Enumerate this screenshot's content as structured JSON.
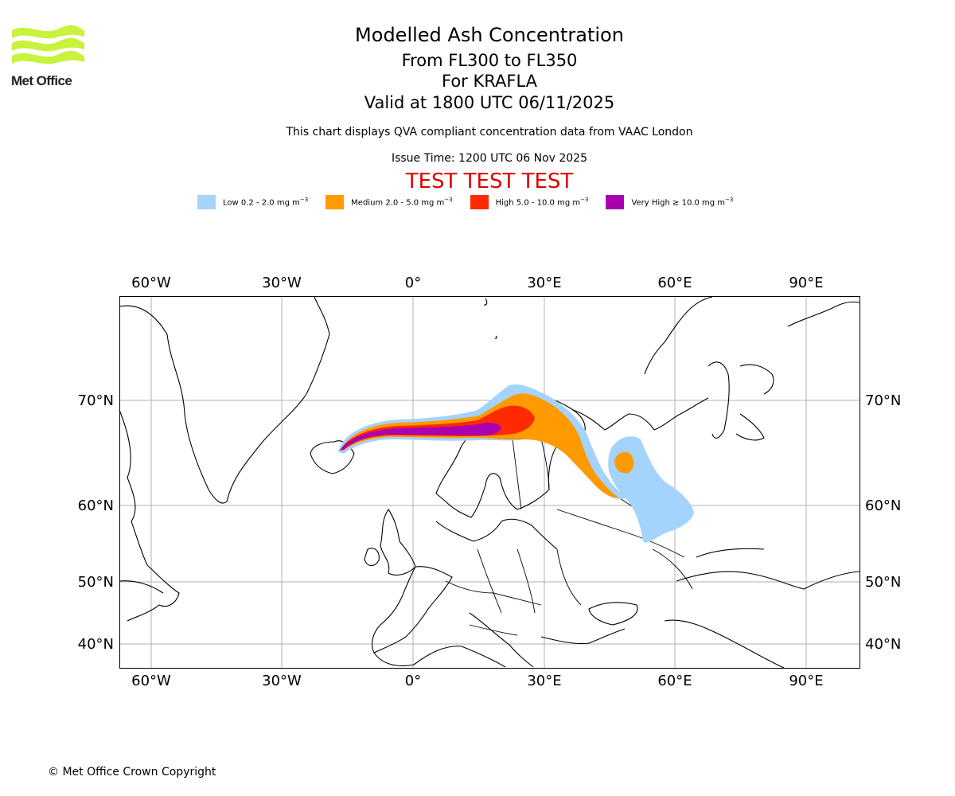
{
  "header": {
    "title": "Modelled Ash Concentration",
    "level_range": "From FL300 to FL350",
    "volcano": "For KRAFLA",
    "valid_time": "Valid at 1800 UTC 06/11/2025",
    "qva_note": "This chart displays QVA compliant concentration data from VAAC London",
    "issue_time": "Issue Time: 1200 UTC 06 Nov 2025",
    "test_banner": "TEST TEST TEST"
  },
  "logo": {
    "text": "Met Office",
    "color": "#c8f23c"
  },
  "legend": [
    {
      "label": "Low 0.2 - 2.0 mg m",
      "exp": "−3",
      "color": "#a4d3fc"
    },
    {
      "label": "Medium 2.0 - 5.0 mg m",
      "exp": "−3",
      "color": "#ff9a00"
    },
    {
      "label": "High 5.0 - 10.0 mg m",
      "exp": "−3",
      "color": "#ff2a00"
    },
    {
      "label": "Very High  ≥  10.0 mg m",
      "exp": "−3",
      "color": "#aa00b0"
    }
  ],
  "map": {
    "lon_ticks": [
      "60°W",
      "30°W",
      "0°",
      "30°E",
      "60°E",
      "90°E"
    ],
    "lat_ticks": [
      "70°N",
      "60°N",
      "50°N",
      "40°N"
    ]
  },
  "footer": {
    "copyright": "© Met Office Crown Copyright"
  }
}
